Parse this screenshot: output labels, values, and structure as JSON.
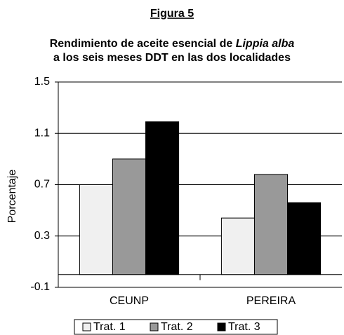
{
  "chart_data": {
    "type": "bar",
    "title": "Figura 5",
    "subtitle": [
      "Rendimiento de aceite esencial de",
      "Lippia alba",
      "a los seis meses DDT en las dos localidades"
    ],
    "y_label": "Porcentaje",
    "categories": [
      "CEUNP",
      "PEREIRA"
    ],
    "series": [
      {
        "name": "Trat. 1",
        "color": "#f0f0f0",
        "values": [
          0.7,
          0.44
        ]
      },
      {
        "name": "Trat. 2",
        "color": "#999999",
        "values": [
          0.9,
          0.78
        ]
      },
      {
        "name": "Trat. 3",
        "color": "#000000",
        "values": [
          1.19,
          0.56
        ]
      }
    ],
    "ylim": [
      -0.1,
      1.5
    ],
    "yticks": [
      -0.1,
      0.3,
      0.7,
      1.1,
      1.5
    ],
    "grid": true,
    "legend": "bottom"
  }
}
